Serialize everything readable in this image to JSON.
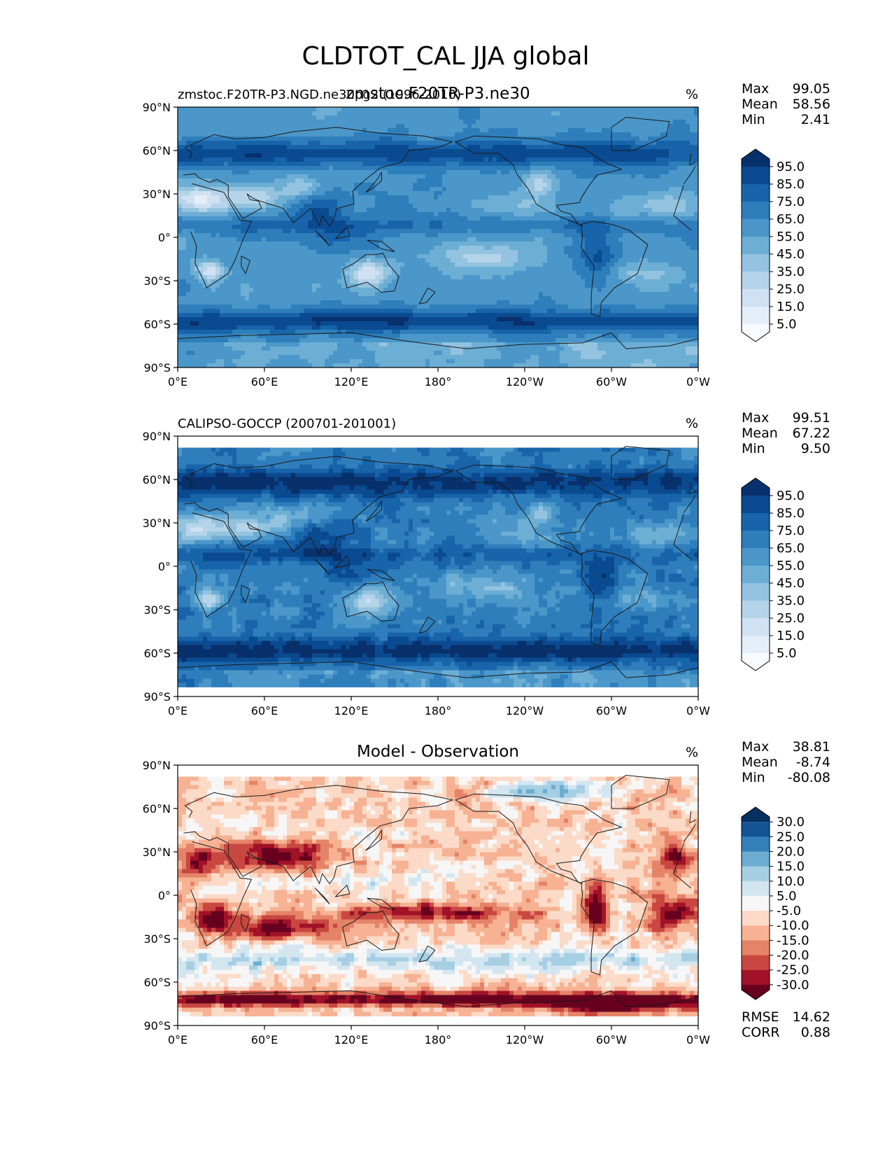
{
  "figure": {
    "title": "CLDTOT_CAL JJA global"
  },
  "colors": {
    "blues": [
      "#f7fbff",
      "#e3eef9",
      "#cfe1f2",
      "#b5d4e9",
      "#93c3df",
      "#6daed5",
      "#4b97c9",
      "#2f7ebc",
      "#1864aa",
      "#0a4a90",
      "#08306b"
    ],
    "diverging": [
      "#67001f",
      "#a11228",
      "#c94741",
      "#e58368",
      "#f6b293",
      "#fbdbc8",
      "#f6f6f6",
      "#d3e6f0",
      "#a6cfe4",
      "#6bacd0",
      "#3480b9",
      "#145395",
      "#053061"
    ],
    "coast": "#1a1a1a"
  },
  "chart_data": [
    {
      "type": "heatmap",
      "id": "test",
      "title_left": "zmstoc.F20TR-P3.NGD.ne30pg2 (1996-2010)",
      "title_center": "zmstoc.F20TR-P3.ne30",
      "units": "%",
      "xlabels": [
        "0°E",
        "60°E",
        "120°E",
        "180°",
        "120°W",
        "60°W",
        "0°W"
      ],
      "ylabels": [
        "90°N",
        "60°N",
        "30°N",
        "0°",
        "30°S",
        "60°S",
        "90°S"
      ],
      "lat_range": [
        -90,
        90
      ],
      "lon_range": [
        0,
        360
      ],
      "stats": [
        {
          "label": "Max",
          "value": "99.05"
        },
        {
          "label": "Mean",
          "value": "58.56"
        },
        {
          "label": "Min",
          "value": "2.41"
        }
      ],
      "colorbar": {
        "palette": "blues",
        "levels": [
          "95.0",
          "85.0",
          "75.0",
          "65.0",
          "55.0",
          "45.0",
          "35.0",
          "25.0",
          "15.0",
          "5.0"
        ],
        "extend": "both"
      },
      "range": [
        0,
        100
      ]
    },
    {
      "type": "heatmap",
      "id": "reference",
      "title_left": "CALIPSO-GOCCP (200701-201001)",
      "title_center": "",
      "units": "%",
      "xlabels": [
        "0°E",
        "60°E",
        "120°E",
        "180°",
        "120°W",
        "60°W",
        "0°W"
      ],
      "ylabels": [
        "90°N",
        "60°N",
        "30°N",
        "0°",
        "30°S",
        "60°S",
        "90°S"
      ],
      "lat_range": [
        -90,
        90
      ],
      "lon_range": [
        0,
        360
      ],
      "data_lat_range": [
        -82,
        82
      ],
      "stats": [
        {
          "label": "Max",
          "value": "99.51"
        },
        {
          "label": "Mean",
          "value": "67.22"
        },
        {
          "label": "Min",
          "value": "9.50"
        }
      ],
      "colorbar": {
        "palette": "blues",
        "levels": [
          "95.0",
          "85.0",
          "75.0",
          "65.0",
          "55.0",
          "45.0",
          "35.0",
          "25.0",
          "15.0",
          "5.0"
        ],
        "extend": "both"
      },
      "range": [
        0,
        100
      ]
    },
    {
      "type": "heatmap",
      "id": "difference",
      "title_left": "",
      "title_center": "Model - Observation",
      "units": "%",
      "xlabels": [
        "0°E",
        "60°E",
        "120°E",
        "180°",
        "120°W",
        "60°W",
        "0°W"
      ],
      "ylabels": [
        "90°N",
        "60°N",
        "30°N",
        "0°",
        "30°S",
        "60°S",
        "90°S"
      ],
      "lat_range": [
        -90,
        90
      ],
      "lon_range": [
        0,
        360
      ],
      "data_lat_range": [
        -82,
        82
      ],
      "stats": [
        {
          "label": "Max",
          "value": "38.81"
        },
        {
          "label": "Mean",
          "value": "-8.74"
        },
        {
          "label": "Min",
          "value": "-80.08"
        }
      ],
      "colorbar": {
        "palette": "diverging",
        "levels": [
          "30.0",
          "25.0",
          "20.0",
          "15.0",
          "10.0",
          "5.0",
          "-5.0",
          "-10.0",
          "-15.0",
          "-20.0",
          "-25.0",
          "-30.0"
        ],
        "extend": "both"
      },
      "range": [
        -35,
        35
      ],
      "metrics": [
        {
          "label": "RMSE",
          "value": "14.62"
        },
        {
          "label": "CORR",
          "value": "0.88"
        }
      ]
    }
  ]
}
